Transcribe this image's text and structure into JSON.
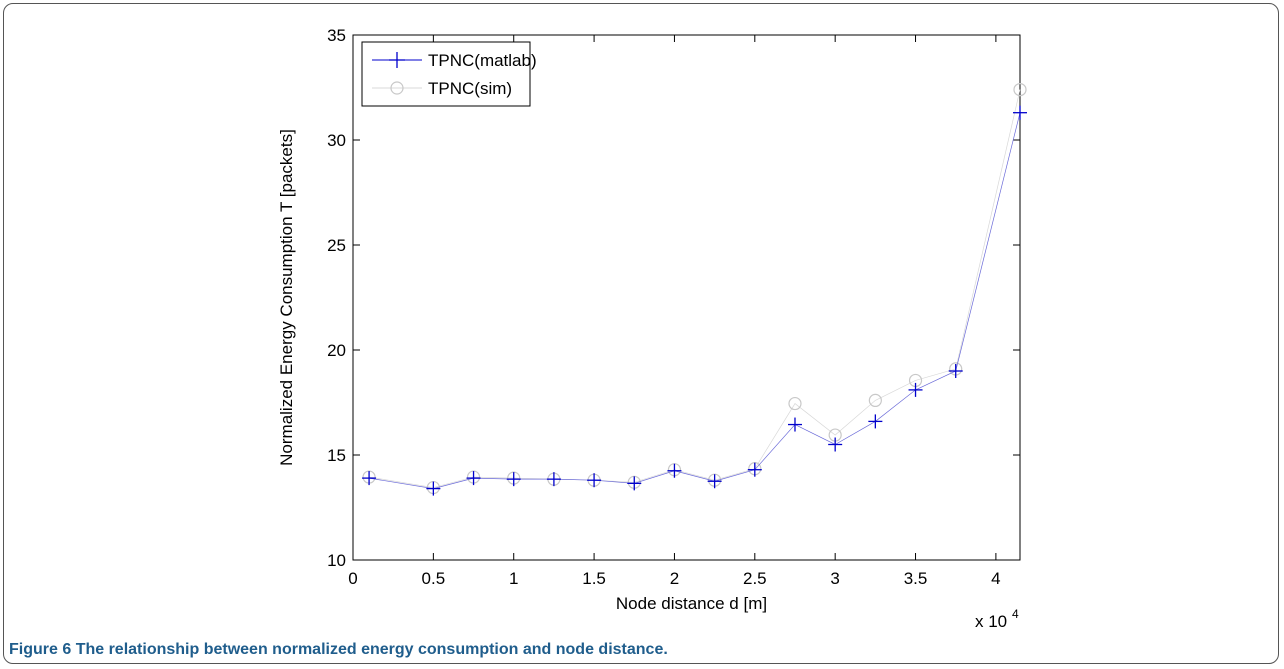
{
  "figure": {
    "number": "Figure 6",
    "caption": "The relationship between normalized energy consumption and node distance."
  },
  "chart_data": {
    "type": "line",
    "xlabel": "Node distance d [m]",
    "ylabel": "Normalized Energy Consumption T [packets]",
    "x_multiplier_label": "x 10",
    "x_multiplier_exponent": "4",
    "xlim": [
      0,
      4.15
    ],
    "ylim": [
      10,
      35
    ],
    "x_ticks": [
      0,
      0.5,
      1,
      1.5,
      2,
      2.5,
      3,
      3.5,
      4
    ],
    "x_tick_labels": [
      "0",
      "0.5",
      "1",
      "1.5",
      "2",
      "2.5",
      "3",
      "3.5",
      "4"
    ],
    "y_ticks": [
      10,
      15,
      20,
      25,
      30,
      35
    ],
    "y_tick_labels": [
      "10",
      "15",
      "20",
      "25",
      "30",
      "35"
    ],
    "grid": false,
    "legend_position": "top-left",
    "x": [
      0.1,
      0.5,
      0.75,
      1.0,
      1.25,
      1.5,
      1.75,
      2.0,
      2.25,
      2.5,
      2.75,
      3.0,
      3.25,
      3.5,
      3.75,
      4.15
    ],
    "series": [
      {
        "name": "TPNC(matlab)",
        "marker": "plus",
        "color": "#0000cc",
        "values": [
          13.9,
          13.4,
          13.9,
          13.85,
          13.85,
          13.8,
          13.65,
          14.25,
          13.75,
          14.3,
          16.45,
          15.5,
          16.6,
          18.1,
          19.0,
          31.3
        ]
      },
      {
        "name": "TPNC(sim)",
        "marker": "circle",
        "color": "#c8c8c8",
        "values": [
          13.95,
          13.45,
          13.95,
          13.9,
          13.85,
          13.8,
          13.7,
          14.3,
          13.8,
          14.35,
          17.45,
          15.95,
          17.6,
          18.55,
          19.1,
          32.4
        ]
      }
    ]
  }
}
